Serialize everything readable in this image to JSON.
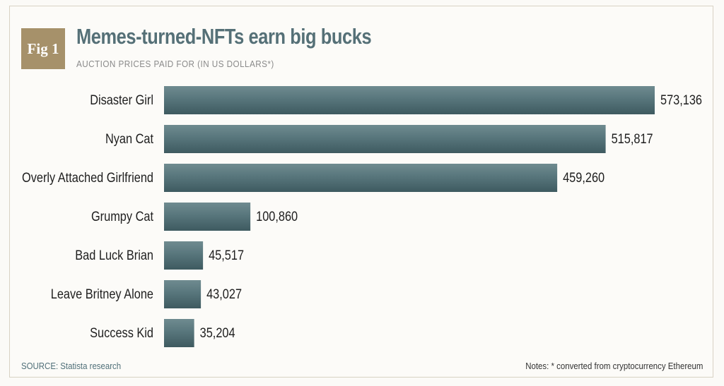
{
  "badge": "Fig 1",
  "title": "Memes-turned-NFTs earn big bucks",
  "subtitle": "AUCTION PRICES PAID FOR (IN US DOLLARS*)",
  "source": "SOURCE: Statista research",
  "notes": "Notes: * converted from cryptocurrency Ethereum",
  "colors": {
    "bar": "#58767c",
    "bar_light": "#6f8b90",
    "bar_dark": "#3e5a60",
    "badge": "#a6916a",
    "title": "#557077"
  },
  "chart_data": {
    "type": "bar",
    "orientation": "horizontal",
    "title": "Memes-turned-NFTs earn big bucks",
    "subtitle": "AUCTION PRICES PAID FOR (IN US DOLLARS*)",
    "xlabel": "",
    "ylabel": "",
    "xlim": [
      0,
      573136
    ],
    "grid": false,
    "categories": [
      "Disaster Girl",
      "Nyan Cat",
      "Overly Attached Girlfriend",
      "Grumpy Cat",
      "Bad Luck Brian",
      "Leave Britney Alone",
      "Success Kid"
    ],
    "values": [
      573136,
      515817,
      459260,
      100860,
      45517,
      43027,
      35204
    ],
    "value_labels": [
      "573,136",
      "515,817",
      "459,260",
      "100,860",
      "45,517",
      "43,027",
      "35,204"
    ]
  }
}
